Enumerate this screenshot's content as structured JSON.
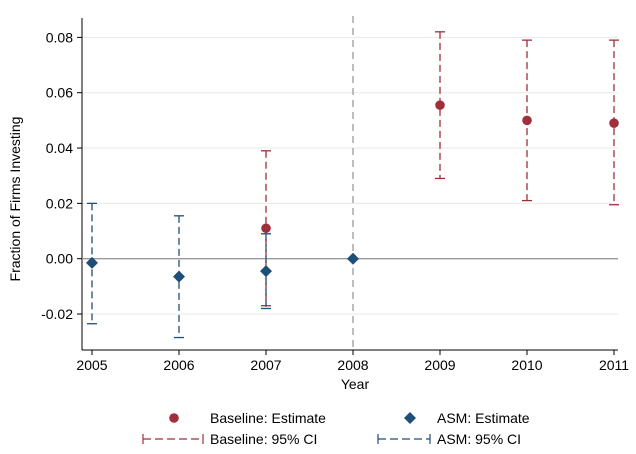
{
  "chart_data": {
    "type": "scatter",
    "title": "",
    "xlabel": "Year",
    "ylabel": "Fraction of Firms Investing",
    "xlim": [
      2005,
      2011
    ],
    "ylim": [
      -0.033,
      0.087
    ],
    "x_ticks": [
      "2005",
      "2006",
      "2007",
      "2008",
      "2009",
      "2010",
      "2011"
    ],
    "y_ticks": [
      "-0.02",
      "0.00",
      "0.02",
      "0.04",
      "0.06",
      "0.08"
    ],
    "y_tick_values": [
      -0.02,
      0.0,
      0.02,
      0.04,
      0.06,
      0.08
    ],
    "grid": true,
    "reference_lines": {
      "horizontal_zero": 0.0,
      "vertical_event_year": 2008
    },
    "legend_position": "bottom",
    "legend": {
      "baseline_estimate": "Baseline: Estimate",
      "asm_estimate": "ASM: Estimate",
      "baseline_ci": "Baseline: 95% CI",
      "asm_ci": "ASM: 95% CI"
    },
    "colors": {
      "baseline": "#9e2f3b",
      "asm": "#1f4e79",
      "grid": "#e8e8e8",
      "zero_line": "#9a9a9a",
      "event_line": "#a8a8a8"
    },
    "series": [
      {
        "name": "Baseline: Estimate",
        "marker": "circle",
        "points": [
          {
            "x": 2007,
            "y": 0.011,
            "ci_low": -0.017,
            "ci_high": 0.039
          },
          {
            "x": 2009,
            "y": 0.0555,
            "ci_low": 0.029,
            "ci_high": 0.082
          },
          {
            "x": 2010,
            "y": 0.05,
            "ci_low": 0.021,
            "ci_high": 0.079
          },
          {
            "x": 2011,
            "y": 0.049,
            "ci_low": 0.0195,
            "ci_high": 0.079
          }
        ]
      },
      {
        "name": "ASM: Estimate",
        "marker": "diamond",
        "points": [
          {
            "x": 2005,
            "y": -0.0015,
            "ci_low": -0.0235,
            "ci_high": 0.02
          },
          {
            "x": 2006,
            "y": -0.0065,
            "ci_low": -0.0285,
            "ci_high": 0.0155
          },
          {
            "x": 2007,
            "y": -0.0045,
            "ci_low": -0.018,
            "ci_high": 0.009
          },
          {
            "x": 2008,
            "y": 0.0,
            "ci_low": null,
            "ci_high": null
          }
        ]
      }
    ]
  }
}
